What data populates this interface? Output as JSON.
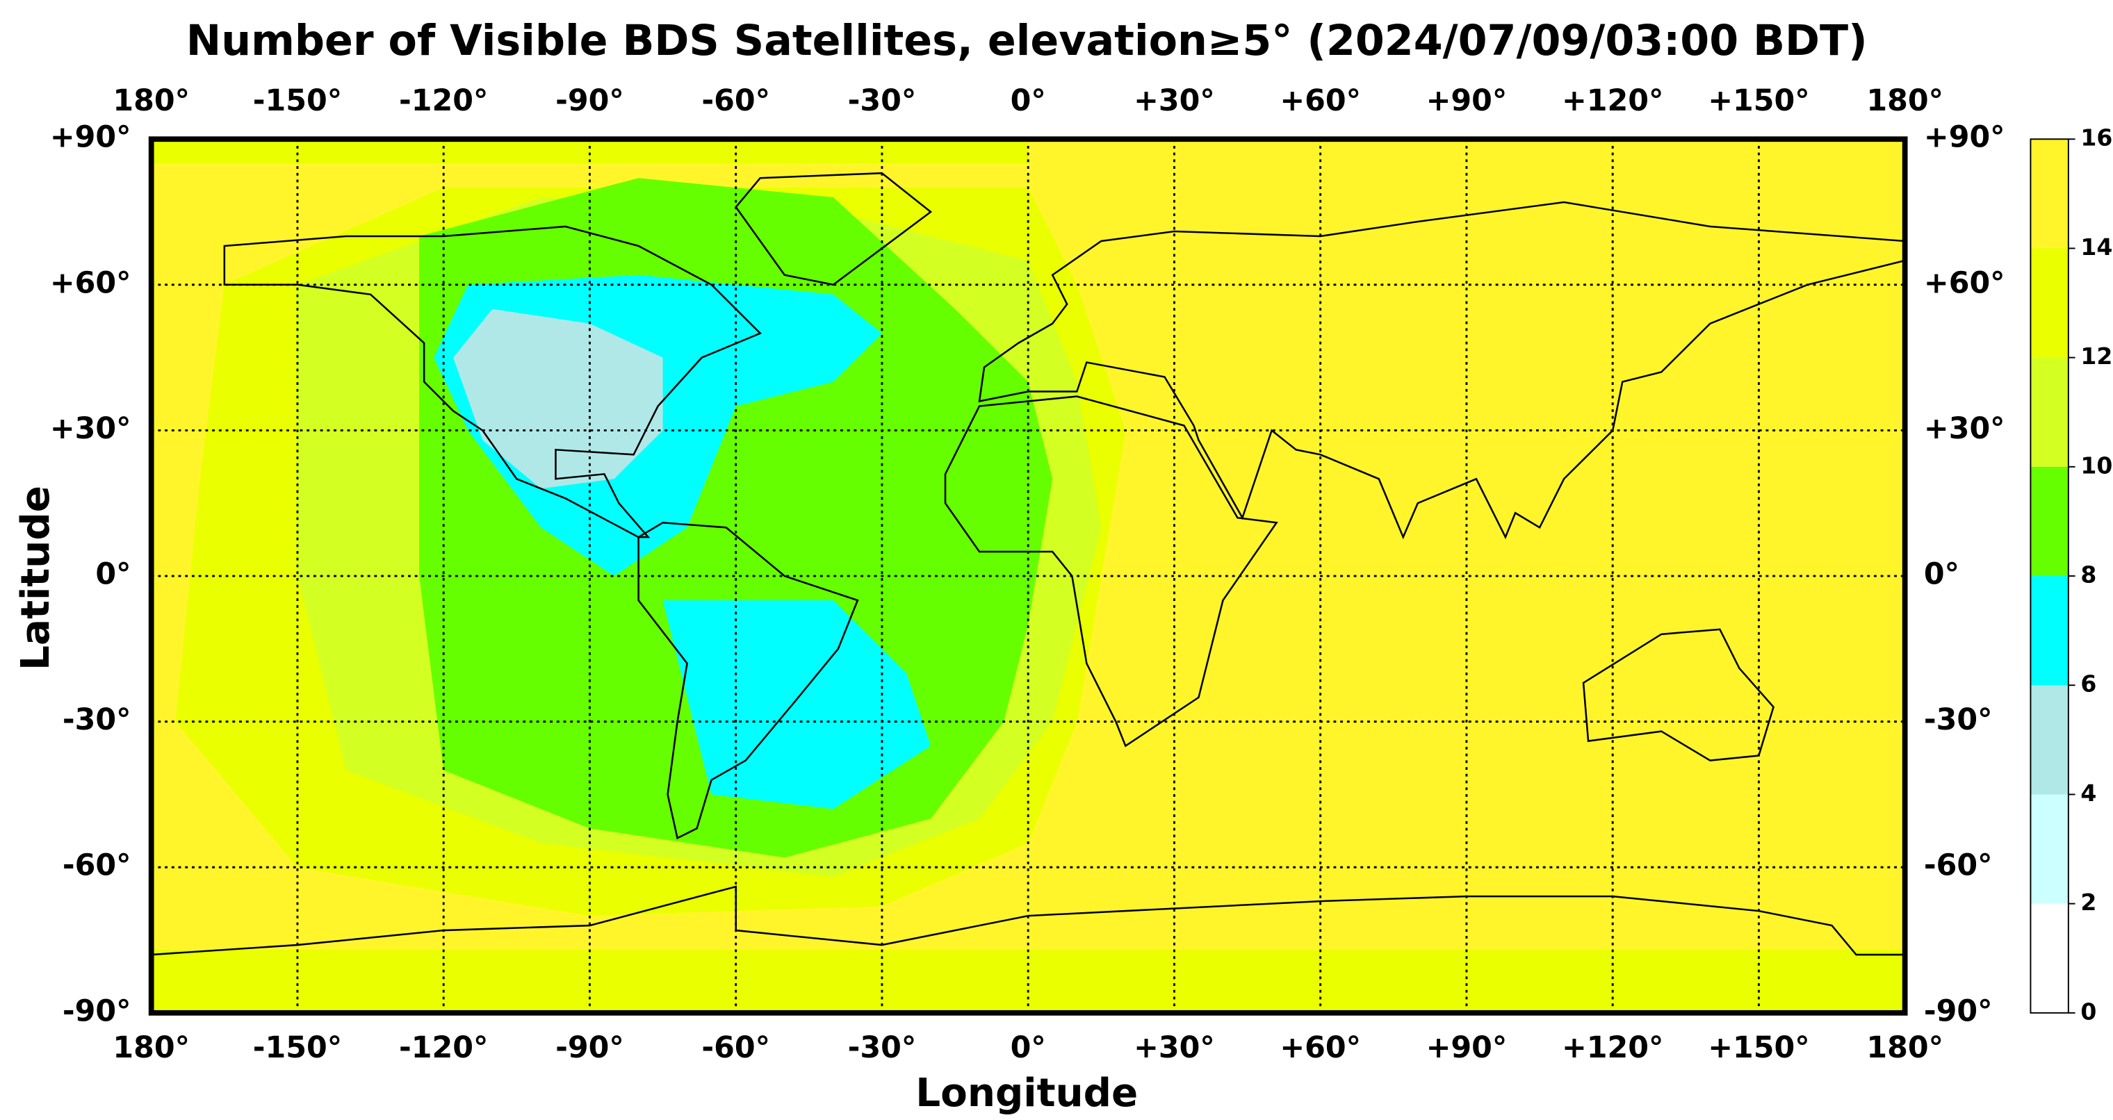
{
  "chart_data": {
    "type": "map",
    "title": "Number of Visible BDS Satellites, elevation≥5° (2024/07/09/03:00 BDT)",
    "xlabel": "Longitude",
    "ylabel": "Latitude",
    "xlim": [
      -180,
      180
    ],
    "ylim": [
      -90,
      90
    ],
    "xticks": [
      {
        "value": -180,
        "label": "180°"
      },
      {
        "value": -150,
        "label": "-150°"
      },
      {
        "value": -120,
        "label": "-120°"
      },
      {
        "value": -90,
        "label": "-90°"
      },
      {
        "value": -60,
        "label": "-60°"
      },
      {
        "value": -30,
        "label": "-30°"
      },
      {
        "value": 0,
        "label": "0°"
      },
      {
        "value": 30,
        "label": "+30°"
      },
      {
        "value": 60,
        "label": "+60°"
      },
      {
        "value": 90,
        "label": "+90°"
      },
      {
        "value": 120,
        "label": "+120°"
      },
      {
        "value": 150,
        "label": "+150°"
      },
      {
        "value": 180,
        "label": "180°"
      }
    ],
    "yticks": [
      {
        "value": 90,
        "label": "+90°"
      },
      {
        "value": 60,
        "label": "+60°"
      },
      {
        "value": 30,
        "label": "+30°"
      },
      {
        "value": 0,
        "label": "0°"
      },
      {
        "value": -30,
        "label": "-30°"
      },
      {
        "value": -60,
        "label": "-60°"
      },
      {
        "value": -90,
        "label": "-90°"
      }
    ],
    "grid": true,
    "colorbar": {
      "lim": [
        0,
        16
      ],
      "ticks": [
        0,
        2,
        4,
        6,
        8,
        10,
        12,
        14,
        16
      ],
      "colors": [
        "#ffffff",
        "#ccffff",
        "#b0e8e8",
        "#00ffff",
        "#66ff00",
        "#d4ff22",
        "#eaff00",
        "#fff52a"
      ]
    }
  }
}
